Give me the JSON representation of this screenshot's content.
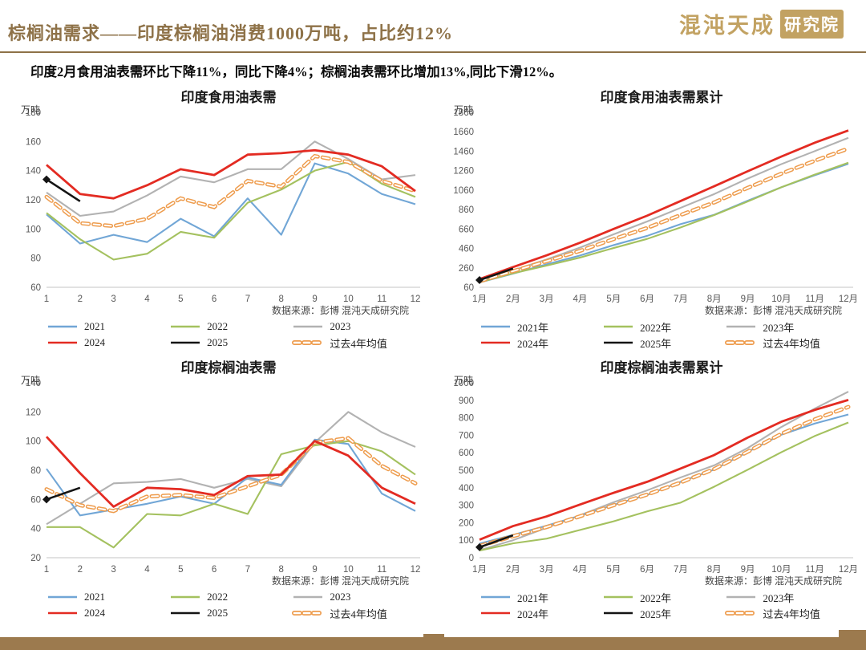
{
  "page": {
    "title": "棕榈油需求——印度棕榈油消费1000万吨，占比约12%",
    "subtitle": "印度2月食用油表需环比下降11%，同比下降4%；棕榈油表需环比增加13%,同比下滑12%。",
    "logo": {
      "brand": "混沌天成",
      "suffix": "研究院"
    },
    "colors": {
      "title_gold": "#8E7248",
      "logo_gold": "#C2A262",
      "footer_brown": "#9C7A4E"
    }
  },
  "chart_data": [
    {
      "type": "line",
      "title": "印度食用油表需",
      "unit": "万吨",
      "source": "数据来源：彭博  混沌天成研究院",
      "x_labels": [
        "1",
        "2",
        "3",
        "4",
        "5",
        "6",
        "7",
        "8",
        "9",
        "10",
        "11",
        "12"
      ],
      "ylim": [
        60,
        180
      ],
      "ytick_step": 20,
      "grid": false,
      "legend_position": "bottom",
      "series": [
        {
          "name": "2021",
          "color": "#71A6D6",
          "zorder": 2,
          "values": [
            110,
            90,
            96,
            91,
            107,
            95,
            121,
            96,
            145,
            138,
            124,
            117
          ]
        },
        {
          "name": "2022",
          "color": "#A4C15F",
          "zorder": 3,
          "values": [
            111,
            93,
            79,
            83,
            98,
            94,
            118,
            127,
            140,
            146,
            131,
            122
          ]
        },
        {
          "name": "2023",
          "color": "#B2B2B2",
          "zorder": 1,
          "values": [
            125,
            109,
            112,
            123,
            136,
            132,
            141,
            141,
            160,
            148,
            134,
            137
          ]
        },
        {
          "name": "2024",
          "color": "#E32B22",
          "zorder": 5,
          "width": 2.8,
          "values": [
            144,
            124,
            121,
            130,
            141,
            137,
            151,
            152,
            154,
            151,
            143,
            126
          ]
        },
        {
          "name": "2025",
          "color": "#141414",
          "zorder": 6,
          "width": 2.6,
          "marker": "diamond",
          "values": [
            134,
            119
          ]
        },
        {
          "name": "过去4年均值",
          "color": "#EE9C4D",
          "zorder": 4,
          "dashed": true,
          "values": [
            122,
            104,
            102,
            107,
            121,
            115,
            133,
            129,
            150,
            146,
            133,
            126
          ]
        }
      ]
    },
    {
      "type": "line",
      "title": "印度食用油表需累计",
      "unit": "万吨",
      "source": "数据来源：彭博  混沌天成研究院",
      "x_labels": [
        "1月",
        "2月",
        "3月",
        "4月",
        "5月",
        "6月",
        "7月",
        "8月",
        "9月",
        "10月",
        "11月",
        "12月"
      ],
      "ylim": [
        60,
        1860
      ],
      "ytick_step": 200,
      "grid": false,
      "legend_position": "bottom",
      "series": [
        {
          "name": "2021年",
          "color": "#71A6D6",
          "zorder": 2,
          "values": [
            110,
            200,
            296,
            387,
            494,
            589,
            710,
            806,
            951,
            1089,
            1213,
            1330
          ]
        },
        {
          "name": "2022年",
          "color": "#A4C15F",
          "zorder": 3,
          "values": [
            111,
            204,
            283,
            366,
            464,
            558,
            676,
            803,
            943,
            1089,
            1220,
            1342
          ]
        },
        {
          "name": "2023年",
          "color": "#B2B2B2",
          "zorder": 1,
          "values": [
            125,
            234,
            346,
            469,
            605,
            737,
            878,
            1019,
            1179,
            1327,
            1461,
            1598
          ]
        },
        {
          "name": "2024年",
          "color": "#E32B22",
          "zorder": 5,
          "width": 2.8,
          "values": [
            144,
            268,
            389,
            519,
            660,
            797,
            948,
            1100,
            1254,
            1405,
            1548,
            1674
          ]
        },
        {
          "name": "2025年",
          "color": "#141414",
          "zorder": 6,
          "width": 2.6,
          "marker": "diamond",
          "values": [
            134,
            253
          ]
        },
        {
          "name": "过去4年均值",
          "color": "#EE9C4D",
          "zorder": 4,
          "dashed": true,
          "values": [
            122,
            226,
            328,
            435,
            556,
            671,
            804,
            933,
            1083,
            1229,
            1362,
            1488
          ]
        }
      ]
    },
    {
      "type": "line",
      "title": "印度棕榈油表需",
      "unit": "万吨",
      "source": "数据来源：彭博  混沌天成研究院",
      "x_labels": [
        "1",
        "2",
        "3",
        "4",
        "5",
        "6",
        "7",
        "8",
        "9",
        "10",
        "11",
        "12"
      ],
      "ylim": [
        20,
        140
      ],
      "ytick_step": 20,
      "grid": false,
      "legend_position": "bottom",
      "series": [
        {
          "name": "2021",
          "color": "#71A6D6",
          "zorder": 2,
          "values": [
            81,
            49,
            53,
            57,
            62,
            57,
            75,
            70,
            101,
            98,
            64,
            52
          ]
        },
        {
          "name": "2022",
          "color": "#A4C15F",
          "zorder": 3,
          "values": [
            41,
            41,
            27,
            50,
            49,
            57,
            50,
            91,
            97,
            100,
            93,
            77
          ]
        },
        {
          "name": "2023",
          "color": "#B2B2B2",
          "zorder": 1,
          "values": [
            43,
            57,
            71,
            72,
            74,
            68,
            74,
            69,
            99,
            120,
            106,
            96
          ]
        },
        {
          "name": "2024",
          "color": "#E32B22",
          "zorder": 5,
          "width": 2.8,
          "values": [
            103,
            78,
            55,
            68,
            67,
            63,
            76,
            77,
            100,
            90,
            68,
            57
          ]
        },
        {
          "name": "2025",
          "color": "#141414",
          "zorder": 6,
          "width": 2.6,
          "marker": "diamond",
          "values": [
            60,
            68
          ]
        },
        {
          "name": "过去4年均值",
          "color": "#EE9C4D",
          "zorder": 4,
          "dashed": true,
          "values": [
            67,
            56,
            52,
            62,
            63,
            61,
            69,
            77,
            99,
            102,
            83,
            71
          ]
        }
      ]
    },
    {
      "type": "line",
      "title": "印度棕榈油表需累计",
      "unit": "万吨",
      "source": "数据来源：彭博  混沌天成研究院",
      "x_labels": [
        "1月",
        "2月",
        "3月",
        "4月",
        "5月",
        "6月",
        "7月",
        "8月",
        "9月",
        "10月",
        "11月",
        "12月"
      ],
      "ylim": [
        0,
        1000
      ],
      "ytick_step": 100,
      "grid": false,
      "legend_position": "bottom",
      "series": [
        {
          "name": "2021年",
          "color": "#71A6D6",
          "zorder": 2,
          "values": [
            81,
            130,
            183,
            240,
            302,
            359,
            434,
            504,
            605,
            703,
            767,
            819
          ]
        },
        {
          "name": "2022年",
          "color": "#A4C15F",
          "zorder": 3,
          "values": [
            41,
            82,
            109,
            159,
            208,
            265,
            315,
            406,
            503,
            603,
            696,
            773
          ]
        },
        {
          "name": "2023年",
          "color": "#B2B2B2",
          "zorder": 1,
          "values": [
            43,
            100,
            171,
            243,
            317,
            385,
            459,
            528,
            627,
            747,
            853,
            949
          ]
        },
        {
          "name": "2024年",
          "color": "#E32B22",
          "zorder": 5,
          "width": 2.8,
          "values": [
            103,
            181,
            236,
            304,
            371,
            434,
            510,
            587,
            687,
            777,
            845,
            902
          ]
        },
        {
          "name": "2025年",
          "color": "#141414",
          "zorder": 6,
          "width": 2.6,
          "marker": "diamond",
          "values": [
            60,
            128
          ]
        },
        {
          "name": "过去4年均值",
          "color": "#EE9C4D",
          "zorder": 4,
          "dashed": true,
          "values": [
            67,
            123,
            175,
            237,
            300,
            361,
            430,
            507,
            606,
            708,
            791,
            862
          ]
        }
      ]
    }
  ]
}
